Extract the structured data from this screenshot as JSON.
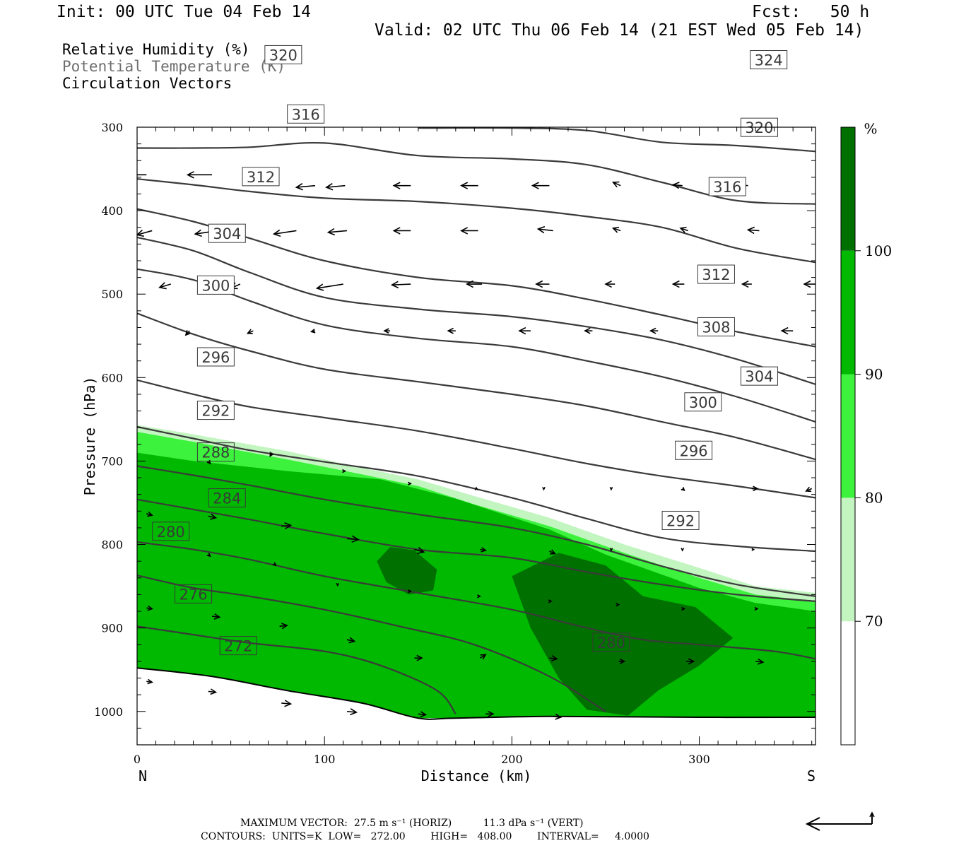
{
  "header": {
    "init": "Init: 00 UTC Tue 04 Feb 14",
    "fcst": "Fcst:   50 h",
    "valid": "Valid: 02 UTC Thu 06 Feb 14 (21 EST Wed 05 Feb 14)"
  },
  "legend": {
    "rh": "Relative Humidity (%)",
    "theta": "Potential Temperature (K)",
    "vectors": "Circulation Vectors"
  },
  "colors": {
    "c70": "#ffffff",
    "c80": "#c2f5c0",
    "c90": "#3cf23c",
    "c100": "#00b900",
    "cmax": "#007000",
    "contour": "#3a3a3a"
  },
  "chart_data": {
    "type": "cross-section",
    "xlabel": "Distance (km)",
    "ylabel": "Pressure (hPa)",
    "xlim": [
      0,
      362
    ],
    "ylim": [
      1040,
      300
    ],
    "x_ticks": [
      "0",
      "100",
      "200",
      "300"
    ],
    "y_ticks": [
      "300",
      "400",
      "500",
      "600",
      "700",
      "800",
      "900",
      "1000"
    ],
    "x_ends": {
      "left": "N",
      "right": "S"
    },
    "colorbar": {
      "unit": "%",
      "levels": [
        "70",
        "80",
        "90",
        "100"
      ],
      "level_values": [
        70,
        80,
        90,
        100
      ]
    },
    "humidity_fields": [
      {
        "level": 70,
        "boundary": [
          [
            0,
            657
          ],
          [
            30,
            668
          ],
          [
            80,
            688
          ],
          [
            120,
            708
          ],
          [
            150,
            722
          ],
          [
            180,
            742
          ],
          [
            220,
            768
          ],
          [
            260,
            800
          ],
          [
            300,
            828
          ],
          [
            330,
            850
          ],
          [
            362,
            858
          ]
        ]
      },
      {
        "level": 80,
        "boundary": [
          [
            0,
            665
          ],
          [
            30,
            677
          ],
          [
            80,
            698
          ],
          [
            120,
            716
          ],
          [
            150,
            730
          ],
          [
            180,
            752
          ],
          [
            220,
            778
          ],
          [
            260,
            810
          ],
          [
            300,
            840
          ],
          [
            330,
            860
          ],
          [
            362,
            868
          ]
        ]
      },
      {
        "level": 90,
        "boundary": [
          [
            0,
            690
          ],
          [
            30,
            700
          ],
          [
            80,
            712
          ],
          [
            130,
            722
          ],
          [
            170,
            745
          ],
          [
            220,
            782
          ],
          [
            250,
            812
          ],
          [
            300,
            852
          ],
          [
            330,
            870
          ],
          [
            362,
            880
          ]
        ]
      },
      {
        "level": 100,
        "cores": [
          [
            [
              128,
              820
            ],
            [
              135,
              803
            ],
            [
              148,
              807
            ],
            [
              160,
              830
            ],
            [
              158,
              855
            ],
            [
              145,
              860
            ],
            [
              133,
              845
            ]
          ],
          [
            [
              200,
              838
            ],
            [
              225,
              810
            ],
            [
              250,
              825
            ],
            [
              270,
              862
            ],
            [
              298,
              875
            ],
            [
              318,
              912
            ],
            [
              300,
              945
            ],
            [
              278,
              975
            ],
            [
              262,
              1005
            ],
            [
              240,
              998
            ],
            [
              225,
              960
            ],
            [
              210,
              900
            ]
          ]
        ]
      }
    ],
    "theta_contours": [
      {
        "value": 272,
        "label": "272",
        "points": [
          [
            0,
            898
          ],
          [
            30,
            908
          ],
          [
            60,
            918
          ],
          [
            100,
            928
          ],
          [
            130,
            945
          ],
          [
            160,
            975
          ],
          [
            170,
            1003
          ]
        ]
      },
      {
        "value": 276,
        "label": "276",
        "points": [
          [
            0,
            837
          ],
          [
            30,
            852
          ],
          [
            60,
            862
          ],
          [
            100,
            878
          ],
          [
            140,
            898
          ],
          [
            180,
            920
          ],
          [
            220,
            958
          ],
          [
            250,
            1000
          ]
        ]
      },
      {
        "value": 280,
        "label": "280",
        "points": [
          [
            0,
            797
          ],
          [
            30,
            806
          ],
          [
            60,
            818
          ],
          [
            100,
            838
          ],
          [
            150,
            858
          ],
          [
            200,
            878
          ],
          [
            240,
            900
          ],
          [
            270,
            914
          ],
          [
            300,
            920
          ],
          [
            340,
            928
          ],
          [
            362,
            937
          ]
        ]
      },
      {
        "value": 284,
        "label": "284",
        "points": [
          [
            0,
            746
          ],
          [
            30,
            758
          ],
          [
            60,
            770
          ],
          [
            100,
            787
          ],
          [
            150,
            806
          ],
          [
            200,
            816
          ],
          [
            240,
            833
          ],
          [
            280,
            848
          ],
          [
            320,
            860
          ],
          [
            362,
            868
          ]
        ]
      },
      {
        "value": 288,
        "label": "288",
        "points": [
          [
            0,
            706
          ],
          [
            30,
            717
          ],
          [
            60,
            729
          ],
          [
            100,
            746
          ],
          [
            150,
            764
          ],
          [
            200,
            780
          ],
          [
            240,
            800
          ],
          [
            280,
            826
          ],
          [
            320,
            848
          ],
          [
            362,
            862
          ]
        ]
      },
      {
        "value": 292,
        "label": "292",
        "points": [
          [
            0,
            659
          ],
          [
            30,
            673
          ],
          [
            60,
            687
          ],
          [
            100,
            701
          ],
          [
            150,
            718
          ],
          [
            200,
            744
          ],
          [
            240,
            769
          ],
          [
            280,
            792
          ],
          [
            320,
            802
          ],
          [
            362,
            808
          ]
        ]
      },
      {
        "value": 296,
        "label": "296",
        "points": [
          [
            0,
            603
          ],
          [
            30,
            620
          ],
          [
            60,
            635
          ],
          [
            100,
            648
          ],
          [
            150,
            664
          ],
          [
            200,
            685
          ],
          [
            240,
            703
          ],
          [
            280,
            718
          ],
          [
            320,
            730
          ],
          [
            362,
            744
          ]
        ]
      },
      {
        "value": 300,
        "label": "300",
        "points": [
          [
            0,
            523
          ],
          [
            30,
            548
          ],
          [
            60,
            568
          ],
          [
            100,
            590
          ],
          [
            150,
            605
          ],
          [
            200,
            620
          ],
          [
            240,
            634
          ],
          [
            280,
            653
          ],
          [
            320,
            672
          ],
          [
            362,
            698
          ]
        ]
      },
      {
        "value": 304,
        "label": "304",
        "points": [
          [
            0,
            470
          ],
          [
            30,
            483
          ],
          [
            60,
            508
          ],
          [
            100,
            537
          ],
          [
            150,
            553
          ],
          [
            200,
            563
          ],
          [
            240,
            580
          ],
          [
            280,
            599
          ],
          [
            320,
            623
          ],
          [
            362,
            653
          ]
        ]
      },
      {
        "value": 308,
        "label": "308",
        "points": [
          [
            0,
            432
          ],
          [
            30,
            448
          ],
          [
            60,
            474
          ],
          [
            100,
            504
          ],
          [
            150,
            518
          ],
          [
            200,
            527
          ],
          [
            240,
            539
          ],
          [
            280,
            555
          ],
          [
            320,
            578
          ],
          [
            362,
            608
          ]
        ]
      },
      {
        "value": 312,
        "label": "312",
        "points": [
          [
            0,
            398
          ],
          [
            30,
            413
          ],
          [
            60,
            433
          ],
          [
            100,
            460
          ],
          [
            150,
            480
          ],
          [
            200,
            490
          ],
          [
            240,
            506
          ],
          [
            280,
            525
          ],
          [
            320,
            545
          ],
          [
            362,
            563
          ]
        ]
      },
      {
        "value": 316,
        "label": "316",
        "points": [
          [
            0,
            362
          ],
          [
            30,
            369
          ],
          [
            60,
            377
          ],
          [
            100,
            385
          ],
          [
            150,
            389
          ],
          [
            200,
            397
          ],
          [
            240,
            407
          ],
          [
            280,
            420
          ],
          [
            320,
            445
          ],
          [
            362,
            462
          ]
        ]
      },
      {
        "value": 320,
        "label": "320",
        "points": [
          [
            0,
            325
          ],
          [
            30,
            325
          ],
          [
            60,
            324
          ],
          [
            100,
            319
          ],
          [
            150,
            334
          ],
          [
            200,
            338
          ],
          [
            240,
            345
          ],
          [
            280,
            366
          ],
          [
            320,
            388
          ],
          [
            362,
            392
          ]
        ]
      },
      {
        "value": 324,
        "label": "324",
        "points": [
          [
            150,
            301
          ],
          [
            200,
            301
          ],
          [
            240,
            304
          ],
          [
            280,
            318
          ],
          [
            320,
            322
          ],
          [
            362,
            329
          ]
        ]
      }
    ],
    "surface": [
      [
        0,
        948
      ],
      [
        40,
        958
      ],
      [
        80,
        975
      ],
      [
        120,
        990
      ],
      [
        150,
        1008
      ],
      [
        170,
        1008
      ],
      [
        220,
        1006
      ],
      [
        300,
        1007
      ],
      [
        362,
        1007
      ]
    ],
    "vector_scale": {
      "max_horiz": "27.5 m s",
      "max_vert": "11.3 dPa s"
    },
    "vectors": [
      [
        5,
        357,
        -13,
        0
      ],
      [
        40,
        357,
        -13,
        0
      ],
      [
        95,
        370,
        -10,
        2
      ],
      [
        111,
        370,
        -10,
        2
      ],
      [
        146,
        370,
        -9,
        0
      ],
      [
        182,
        370,
        -9,
        0
      ],
      [
        220,
        370,
        -9,
        0
      ],
      [
        258,
        370,
        -4,
        -4
      ],
      [
        291,
        370,
        -5,
        -1
      ],
      [
        326,
        370,
        -6,
        -1
      ],
      [
        8,
        424,
        -8,
        5
      ],
      [
        43,
        424,
        -12,
        4
      ],
      [
        85,
        424,
        -12,
        4
      ],
      [
        112,
        424,
        -10,
        2
      ],
      [
        146,
        424,
        -9,
        0
      ],
      [
        182,
        424,
        -9,
        0
      ],
      [
        222,
        424,
        -8,
        -2
      ],
      [
        258,
        424,
        -4,
        -3
      ],
      [
        294,
        424,
        -4,
        -3
      ],
      [
        332,
        424,
        -6,
        -1
      ],
      [
        18,
        488,
        -6,
        4
      ],
      [
        55,
        488,
        -5,
        5
      ],
      [
        110,
        488,
        -14,
        5
      ],
      [
        146,
        488,
        -10,
        1
      ],
      [
        184,
        488,
        -8,
        0
      ],
      [
        220,
        488,
        -7,
        0
      ],
      [
        255,
        488,
        -5,
        0
      ],
      [
        292,
        488,
        -6,
        0
      ],
      [
        328,
        488,
        -5,
        0
      ],
      [
        362,
        488,
        -6,
        0
      ],
      [
        28,
        544,
        -2,
        5
      ],
      [
        62,
        544,
        -3,
        3
      ],
      [
        95,
        544,
        -2,
        1
      ],
      [
        135,
        544,
        -3,
        0
      ],
      [
        170,
        544,
        -4,
        0
      ],
      [
        210,
        544,
        -6,
        0
      ],
      [
        243,
        544,
        -4,
        0
      ],
      [
        278,
        544,
        -4,
        0
      ],
      [
        310,
        544,
        -5,
        0
      ],
      [
        350,
        544,
        -6,
        0
      ]
    ]
  },
  "footer": {
    "line1": "MAXIMUM VECTOR:  27.5 m s⁻¹ (HORIZ)          11.3 dPa s⁻¹ (VERT)",
    "line2": "CONTOURS:  UNITS=K  LOW=   272.00        HIGH=   408.00        INTERVAL=     4.0000"
  }
}
